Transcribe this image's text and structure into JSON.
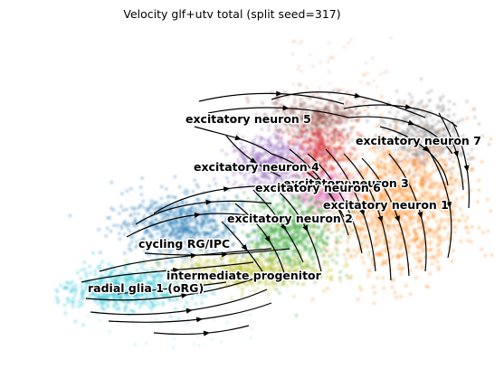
{
  "chart_data": {
    "type": "scatter",
    "title": "Velocity glf+utv total (split seed=317)",
    "xlabel": "",
    "ylabel": "",
    "grid": false,
    "legend": "on data",
    "overlay": "velocity streamlines",
    "clusters": [
      {
        "name": "excitatory neuron 5",
        "color": "#8c564b"
      },
      {
        "name": "excitatory neuron 7",
        "color": "#7f7f7f"
      },
      {
        "name": "excitatory neuron 4",
        "color": "#9467bd"
      },
      {
        "name": "excitatory neuron 3",
        "color": "#d62728"
      },
      {
        "name": "excitatory neuron 6",
        "color": "#e377c2"
      },
      {
        "name": "excitatory neuron 1",
        "color": "#ff7f0e"
      },
      {
        "name": "excitatory neuron 2",
        "color": "#2ca02c"
      },
      {
        "name": "cycling RG/IPC",
        "color": "#1f77b4"
      },
      {
        "name": "intermediate progenitor",
        "color": "#bcbd22"
      },
      {
        "name": "radial glia 1 (oRG)",
        "color": "#17becf"
      }
    ]
  }
}
